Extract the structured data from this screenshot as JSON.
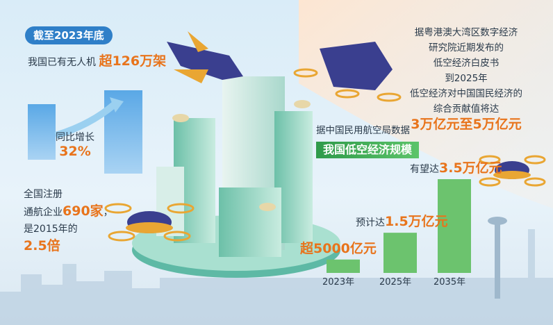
{
  "left": {
    "badge": "截至2023年底",
    "drones": {
      "text": "我国已有无人机",
      "highlight": "超126万架"
    },
    "growth": {
      "text": "同比增长",
      "value": "32%"
    },
    "aviation": {
      "line1": "全国注册",
      "line2": "通航企业",
      "line2_highlight": "690家",
      "line2_end": "，",
      "line3": "是2015年的",
      "line4": "2.5倍"
    }
  },
  "right": {
    "lines": [
      "据粤港澳大湾区数字经济",
      "研究院近期发布的",
      "低空经济白皮书",
      "到2025年",
      "低空经济对中国国民经济的",
      "综合贡献值将达"
    ],
    "highlight": "3万亿元至5万亿元"
  },
  "middle": {
    "source": "据中国民用航空局数据",
    "banner": "我国低空经济规模"
  },
  "chart_data": {
    "type": "bar",
    "categories": [
      "2023年",
      "2025年",
      "2035年"
    ],
    "values": [
      5000,
      15000,
      35000
    ],
    "value_labels": [
      "超5000亿元",
      "1.5万亿元",
      "3.5万亿元"
    ],
    "label_prefixes": [
      null,
      "预计达",
      "有望达"
    ],
    "color": "#6cc36e"
  }
}
